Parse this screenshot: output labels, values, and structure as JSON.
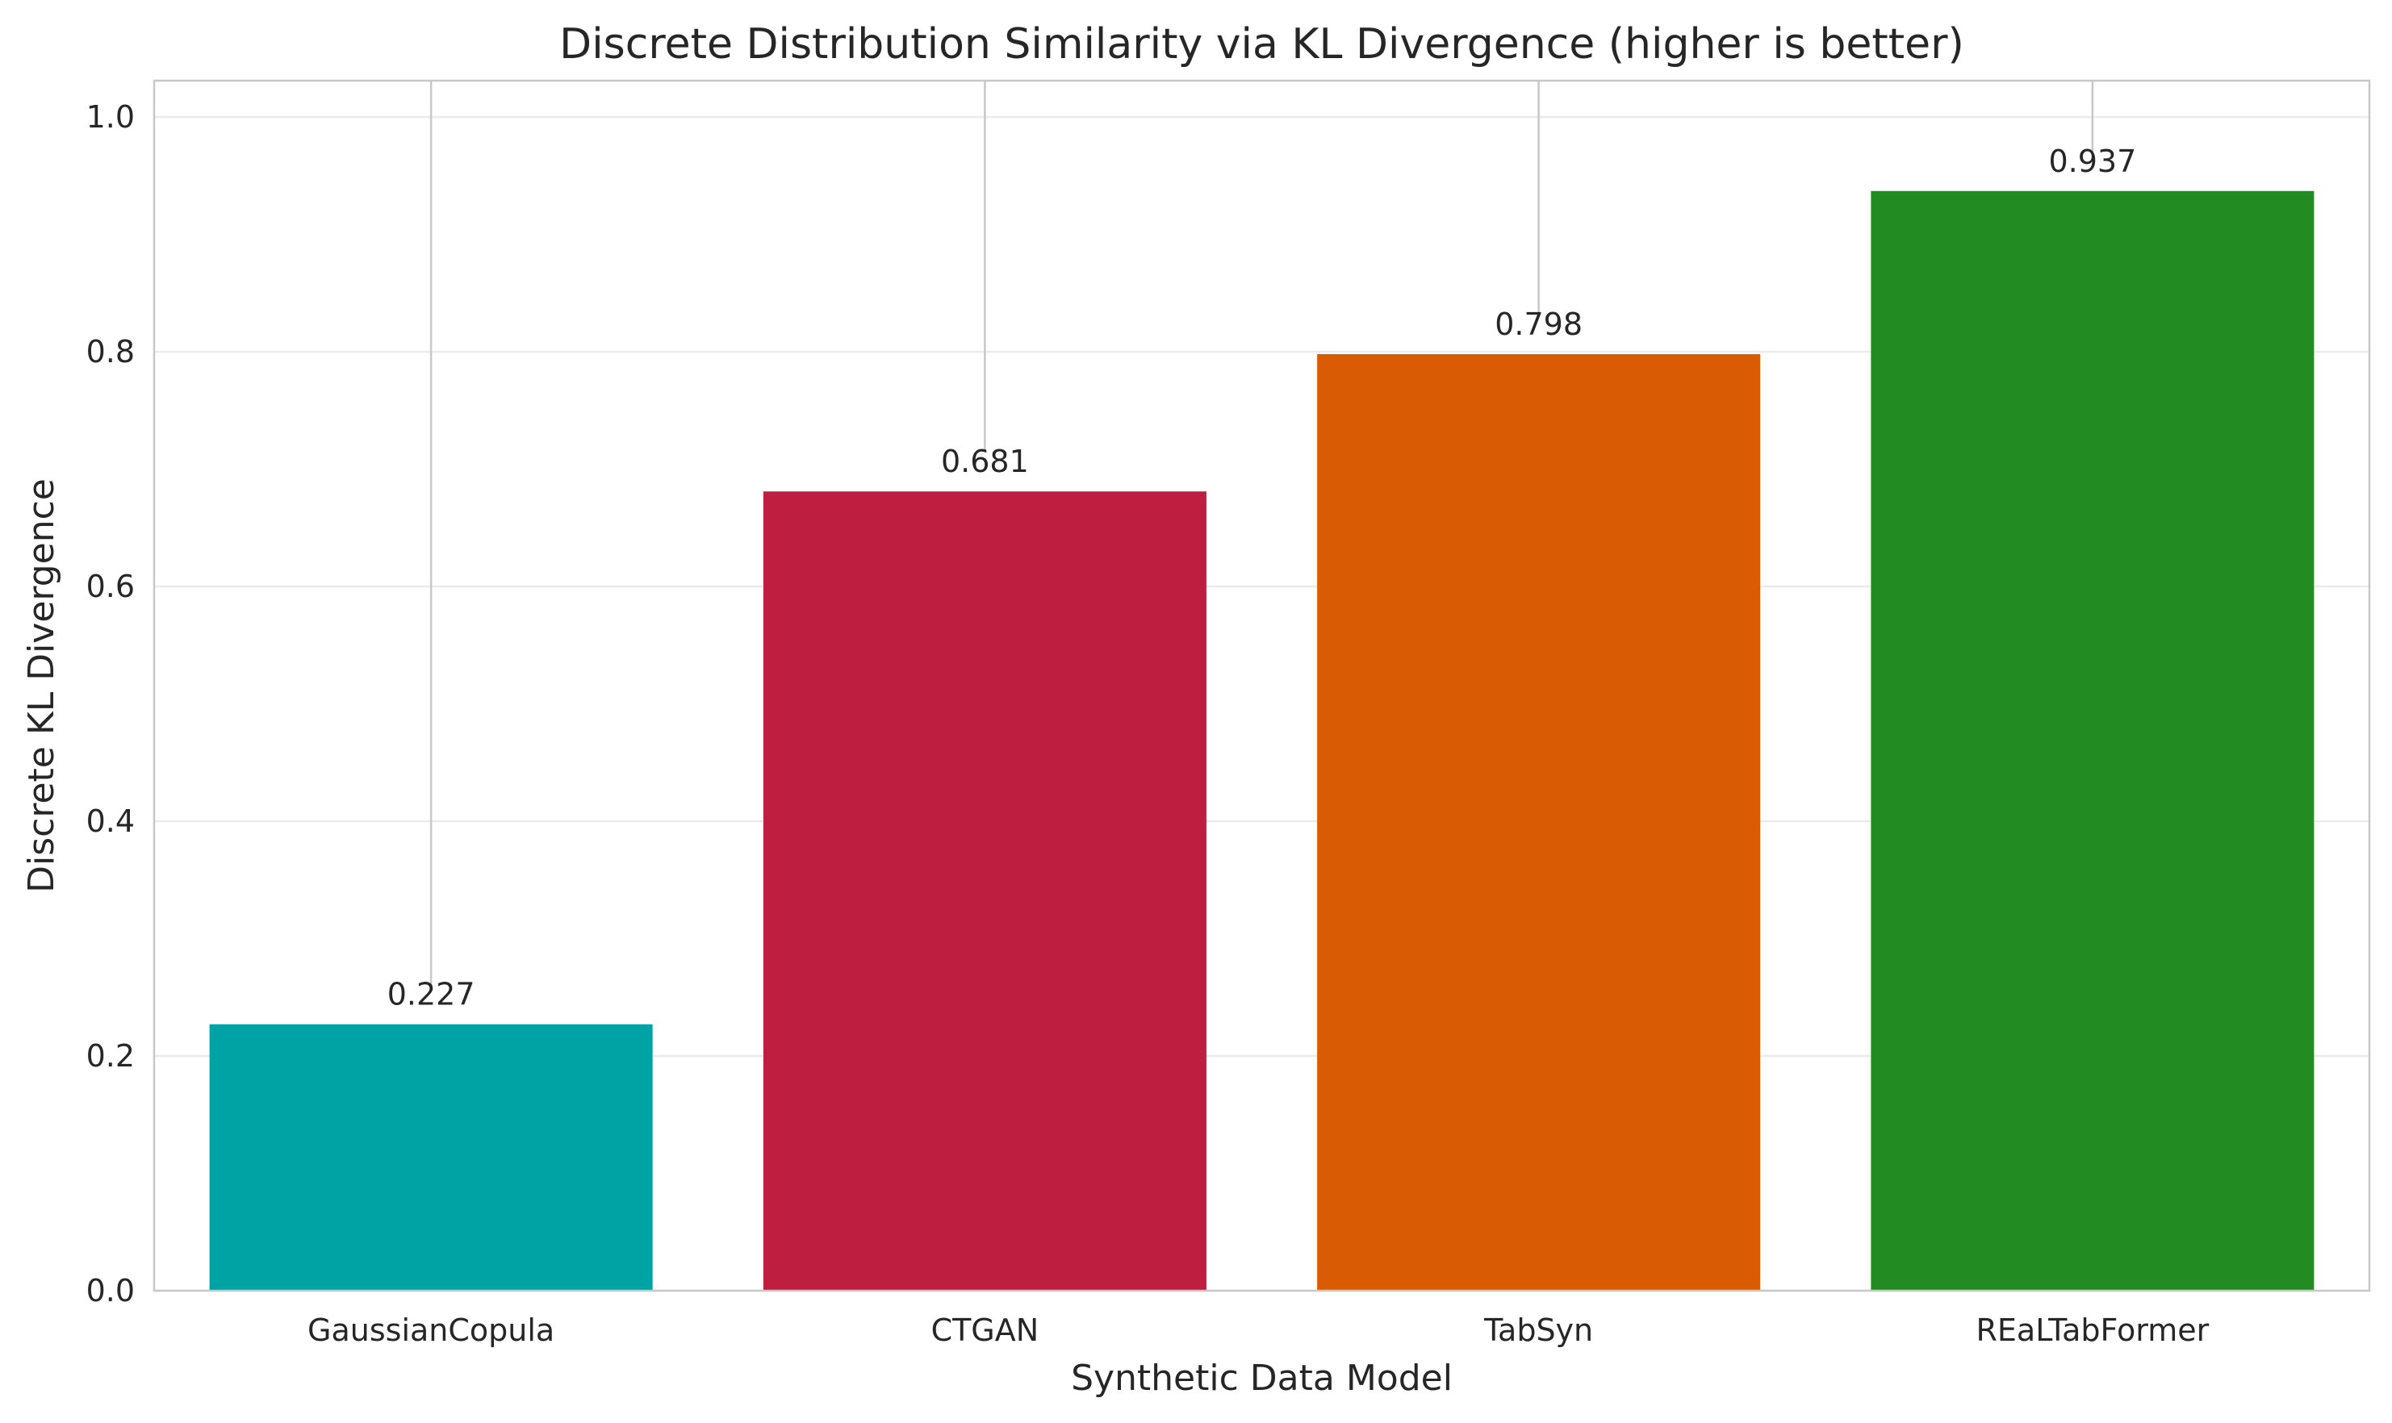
{
  "chart_data": {
    "type": "bar",
    "title": "Discrete Distribution Similarity via KL Divergence (higher is better)",
    "xlabel": "Synthetic Data Model",
    "ylabel": "Discrete KL Divergence",
    "categories": [
      "GaussianCopula",
      "CTGAN",
      "TabSyn",
      "REaLTabFormer"
    ],
    "values": [
      0.227,
      0.681,
      0.798,
      0.937
    ],
    "value_labels": [
      "0.227",
      "0.681",
      "0.798",
      "0.937"
    ],
    "bar_colors": [
      "#00a3a3",
      "#be1e3f",
      "#d95b04",
      "#228b22"
    ],
    "ylim": [
      0,
      1.031
    ],
    "yticks": [
      0.0,
      0.2,
      0.4,
      0.6,
      0.8,
      1.0
    ],
    "ytick_labels": [
      "0.0",
      "0.2",
      "0.4",
      "0.6",
      "0.8",
      "1.0"
    ],
    "grid": true,
    "legend": "none"
  }
}
